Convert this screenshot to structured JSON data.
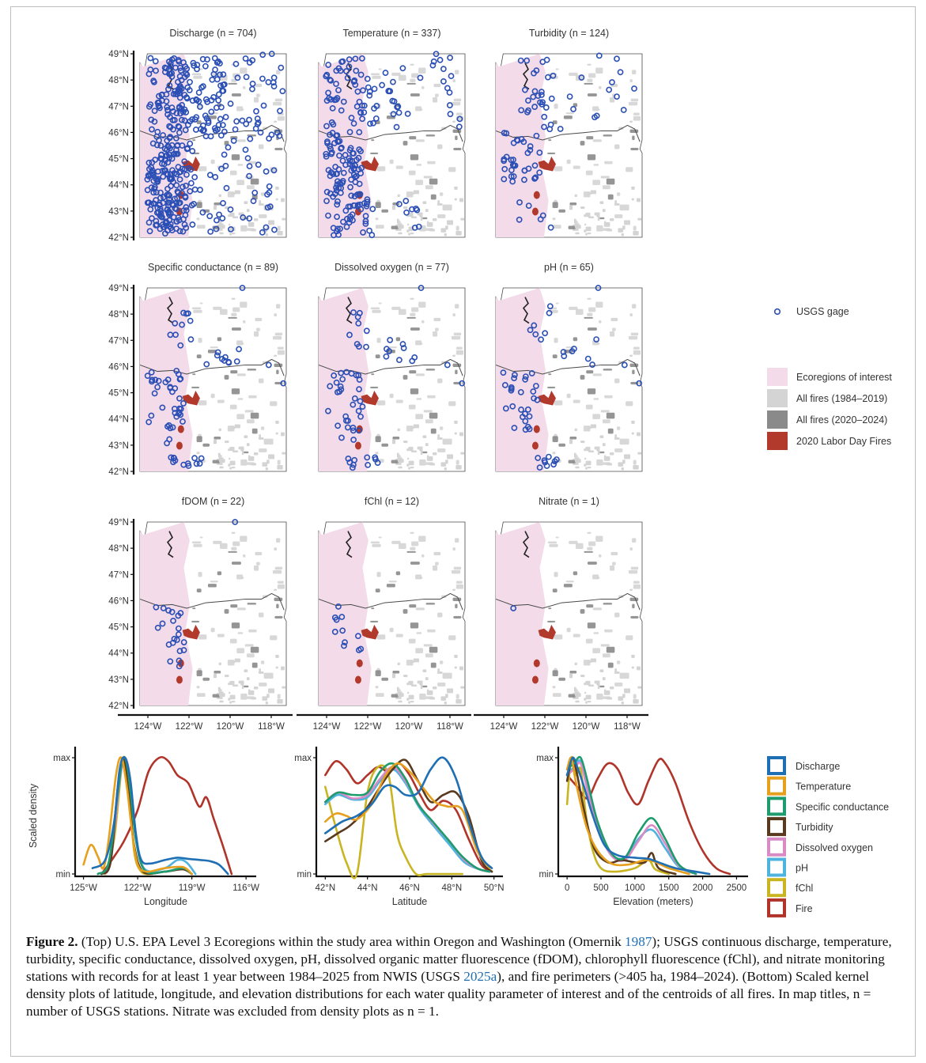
{
  "maps": {
    "panels": [
      {
        "title": "Discharge (n = 704)",
        "n": 704
      },
      {
        "title": "Temperature (n = 337)",
        "n": 337
      },
      {
        "title": "Turbidity (n = 124)",
        "n": 124
      },
      {
        "title": "Specific conductance (n = 89)",
        "n": 89
      },
      {
        "title": "Dissolved oxygen (n = 77)",
        "n": 77
      },
      {
        "title": "pH (n = 65)",
        "n": 65
      },
      {
        "title": "fDOM (n = 22)",
        "n": 22
      },
      {
        "title": "fChl (n = 12)",
        "n": 12
      },
      {
        "title": "Nitrate (n = 1)",
        "n": 1
      }
    ],
    "lat_ticks": [
      "49°N",
      "48°N",
      "47°N",
      "46°N",
      "45°N",
      "44°N",
      "43°N",
      "42°N"
    ],
    "lon_ticks": [
      "124°W",
      "122°W",
      "120°W",
      "118°W"
    ],
    "legend": {
      "gage": "USGS gage",
      "ecoregions": "Ecoregions of interest",
      "fires_early": "All fires (1984–2019)",
      "fires_late": "All fires (2020–2024)",
      "labor_day": "2020 Labor Day Fires"
    },
    "colors": {
      "gage": "#2b4fb5",
      "ecoregion": "#f3dbe9",
      "fire_early": "#d4d4d4",
      "fire_late": "#8a8a8a",
      "labor_day": "#b23a2c",
      "state_fill": "#ffffff"
    }
  },
  "chart_data": [
    {
      "type": "line",
      "xlabel": "Longitude",
      "ylabel": "Scaled density",
      "y_tick_labels": [
        "max",
        "min"
      ],
      "x_tick_labels": [
        "125°W",
        "122°W",
        "119°W",
        "116°W"
      ],
      "x_tick_values": [
        -125,
        -122,
        -119,
        -116
      ],
      "xlim": [
        -125.2,
        -115.7
      ],
      "ylim": [
        0,
        1
      ],
      "series": [
        {
          "name": "Discharge",
          "x": [
            -124.5,
            -123.8,
            -123.3,
            -123.0,
            -122.7,
            -122.4,
            -122.1,
            -121.8,
            -121.3,
            -120.5,
            -119.8,
            -119.2,
            -118.5,
            -118.0,
            -117.5,
            -117.0
          ],
          "y": [
            0.05,
            0.12,
            0.45,
            0.9,
            1.0,
            0.8,
            0.35,
            0.12,
            0.09,
            0.12,
            0.14,
            0.13,
            0.12,
            0.11,
            0.08,
            0.0
          ]
        },
        {
          "name": "Temperature",
          "x": [
            -125.0,
            -124.6,
            -124.2,
            -123.9,
            -123.6,
            -123.2,
            -122.9,
            -122.6,
            -122.3,
            -122.0,
            -121.5,
            -120.5,
            -119.5,
            -119.0
          ],
          "y": [
            0.08,
            0.25,
            0.15,
            0.05,
            0.3,
            0.85,
            1.0,
            0.75,
            0.35,
            0.08,
            0.02,
            0.05,
            0.06,
            0.0
          ]
        },
        {
          "name": "Specific conductance",
          "x": [
            -124.2,
            -123.6,
            -123.1,
            -122.8,
            -122.5,
            -122.1,
            -121.6,
            -120.5,
            -119.5,
            -119.0
          ],
          "y": [
            0.0,
            0.1,
            0.7,
            1.0,
            0.85,
            0.3,
            0.03,
            0.02,
            0.05,
            0.0
          ]
        },
        {
          "name": "Turbidity",
          "x": [
            -124.0,
            -123.5,
            -123.1,
            -122.8,
            -122.5,
            -122.2,
            -121.7,
            -120.5,
            -119.5,
            -119.0
          ],
          "y": [
            0.0,
            0.1,
            0.75,
            1.0,
            0.7,
            0.25,
            0.02,
            0.02,
            0.04,
            0.0
          ]
        },
        {
          "name": "Dissolved oxygen",
          "x": [
            -124.0,
            -123.5,
            -123.0,
            -122.7,
            -122.4,
            -122.1,
            -121.6,
            -120.5,
            -119.5,
            -119.0
          ],
          "y": [
            0.0,
            0.1,
            0.8,
            1.0,
            0.8,
            0.3,
            0.03,
            0.02,
            0.05,
            0.0
          ]
        },
        {
          "name": "pH",
          "x": [
            -124.0,
            -123.5,
            -123.0,
            -122.7,
            -122.4,
            -122.1,
            -121.6,
            -120.5,
            -119.8,
            -119.3,
            -118.8
          ],
          "y": [
            0.0,
            0.12,
            0.8,
            1.0,
            0.78,
            0.3,
            0.04,
            0.05,
            0.12,
            0.1,
            0.0
          ]
        },
        {
          "name": "fChl",
          "x": [
            -123.8,
            -123.3,
            -122.9,
            -122.7,
            -122.5,
            -122.2,
            -121.8,
            -121.2
          ],
          "y": [
            0.0,
            0.3,
            0.9,
            1.0,
            0.8,
            0.2,
            0.02,
            0.0
          ]
        },
        {
          "name": "Fire",
          "x": [
            -124.0,
            -123.3,
            -122.7,
            -122.0,
            -121.4,
            -120.8,
            -120.3,
            -119.8,
            -119.2,
            -118.6,
            -118.2,
            -117.8,
            -117.3,
            -116.8
          ],
          "y": [
            0.0,
            0.15,
            0.3,
            0.55,
            0.88,
            1.0,
            0.97,
            0.85,
            0.78,
            0.58,
            0.66,
            0.48,
            0.25,
            0.0
          ]
        }
      ]
    },
    {
      "type": "line",
      "xlabel": "Latitude",
      "y_tick_labels": [
        "max",
        "min"
      ],
      "x_tick_labels": [
        "42°N",
        "44°N",
        "46°N",
        "48°N",
        "50°N"
      ],
      "x_tick_values": [
        42,
        44,
        46,
        48,
        50
      ],
      "xlim": [
        41.8,
        50.2
      ],
      "ylim": [
        0,
        1
      ],
      "series": [
        {
          "name": "Discharge",
          "x": [
            42.0,
            42.8,
            43.5,
            44.2,
            44.8,
            45.3,
            45.8,
            46.4,
            47.0,
            47.6,
            48.2,
            48.8,
            49.4,
            49.9
          ],
          "y": [
            0.35,
            0.45,
            0.5,
            0.6,
            0.75,
            0.75,
            0.68,
            0.7,
            0.9,
            1.0,
            0.82,
            0.45,
            0.15,
            0.05
          ]
        },
        {
          "name": "Temperature",
          "x": [
            42.0,
            42.5,
            43.0,
            43.5,
            44.2,
            44.8,
            45.4,
            46.0,
            46.6,
            47.2,
            47.8,
            48.5,
            49.2,
            49.8
          ],
          "y": [
            0.45,
            0.52,
            0.5,
            0.47,
            0.6,
            0.83,
            0.95,
            0.88,
            0.75,
            0.62,
            0.58,
            0.55,
            0.2,
            0.05
          ]
        },
        {
          "name": "Specific conductance",
          "x": [
            42.0,
            42.6,
            43.3,
            44.0,
            44.6,
            45.2,
            45.8,
            46.4,
            47.1,
            47.8,
            48.5,
            49.2,
            49.8
          ],
          "y": [
            0.62,
            0.7,
            0.68,
            0.7,
            0.88,
            0.95,
            0.82,
            0.6,
            0.45,
            0.3,
            0.15,
            0.05,
            0.02
          ]
        },
        {
          "name": "Turbidity",
          "x": [
            42.0,
            42.6,
            43.2,
            43.9,
            44.6,
            45.2,
            45.8,
            46.4,
            47.0,
            47.6,
            48.2,
            48.8,
            49.4,
            49.9
          ],
          "y": [
            0.28,
            0.35,
            0.42,
            0.55,
            0.75,
            0.9,
            0.98,
            0.8,
            0.62,
            0.68,
            0.7,
            0.5,
            0.12,
            0.02
          ]
        },
        {
          "name": "Dissolved oxygen",
          "x": [
            42.0,
            42.6,
            43.3,
            44.0,
            44.6,
            45.2,
            45.8,
            46.5,
            47.2,
            47.9,
            48.6,
            49.3,
            49.8
          ],
          "y": [
            0.62,
            0.7,
            0.65,
            0.68,
            0.82,
            0.92,
            0.8,
            0.58,
            0.42,
            0.28,
            0.12,
            0.04,
            0.02
          ]
        },
        {
          "name": "pH",
          "x": [
            42.0,
            42.6,
            43.3,
            44.0,
            44.6,
            45.2,
            45.8,
            46.5,
            47.2,
            47.9,
            48.6,
            49.3,
            49.8
          ],
          "y": [
            0.6,
            0.68,
            0.64,
            0.66,
            0.8,
            0.9,
            0.78,
            0.56,
            0.4,
            0.25,
            0.1,
            0.04,
            0.02
          ]
        },
        {
          "name": "fChl",
          "x": [
            42.0,
            42.5,
            43.0,
            43.5,
            44.0,
            44.5,
            45.0,
            45.4,
            45.8,
            46.3,
            46.8,
            47.5,
            48.5
          ],
          "y": [
            0.75,
            0.4,
            0.1,
            0.0,
            0.7,
            0.92,
            0.85,
            0.35,
            0.15,
            0.0,
            0.0,
            0.0,
            0.0
          ]
        },
        {
          "name": "Fire",
          "x": [
            42.0,
            42.5,
            43.0,
            43.5,
            44.0,
            44.5,
            45.0,
            45.5,
            46.0,
            46.5,
            47.0,
            47.6,
            48.2,
            48.8,
            49.4,
            49.9
          ],
          "y": [
            0.85,
            0.97,
            0.9,
            0.78,
            0.85,
            0.92,
            0.88,
            0.95,
            0.85,
            0.68,
            0.55,
            0.63,
            0.55,
            0.3,
            0.08,
            0.02
          ]
        }
      ]
    },
    {
      "type": "line",
      "xlabel": "Elevation (meters)",
      "y_tick_labels": [
        "max",
        "min"
      ],
      "x_tick_labels": [
        "0",
        "500",
        "1000",
        "1500",
        "2000",
        "2500"
      ],
      "x_tick_values": [
        0,
        500,
        1000,
        1500,
        2000,
        2500
      ],
      "xlim": [
        -60,
        2600
      ],
      "ylim": [
        0,
        1
      ],
      "series": [
        {
          "name": "Discharge",
          "x": [
            0,
            80,
            150,
            250,
            380,
            550,
            750,
            1000,
            1200,
            1350,
            1600,
            1900,
            2100
          ],
          "y": [
            0.85,
            1.0,
            0.92,
            0.75,
            0.5,
            0.25,
            0.16,
            0.14,
            0.13,
            0.1,
            0.05,
            0.02,
            0.0
          ]
        },
        {
          "name": "Temperature",
          "x": [
            0,
            60,
            120,
            200,
            300,
            450,
            650,
            900,
            1200,
            1500,
            1800
          ],
          "y": [
            0.9,
            1.0,
            0.82,
            0.6,
            0.38,
            0.2,
            0.09,
            0.08,
            0.12,
            0.05,
            0.0
          ]
        },
        {
          "name": "Specific conductance",
          "x": [
            0,
            100,
            200,
            300,
            450,
            650,
            850,
            1050,
            1250,
            1450,
            1650,
            1900
          ],
          "y": [
            0.9,
            0.95,
            1.0,
            0.8,
            0.45,
            0.18,
            0.14,
            0.35,
            0.48,
            0.3,
            0.08,
            0.0
          ]
        },
        {
          "name": "Turbidity",
          "x": [
            0,
            80,
            150,
            250,
            400,
            600,
            800,
            1000,
            1150,
            1250,
            1350,
            1600
          ],
          "y": [
            0.8,
            1.0,
            0.85,
            0.55,
            0.22,
            0.1,
            0.12,
            0.1,
            0.1,
            0.18,
            0.05,
            0.0
          ]
        },
        {
          "name": "Dissolved oxygen",
          "x": [
            0,
            100,
            200,
            300,
            450,
            650,
            850,
            1050,
            1250,
            1450,
            1650,
            1900
          ],
          "y": [
            0.85,
            0.9,
            0.95,
            0.72,
            0.4,
            0.16,
            0.12,
            0.28,
            0.42,
            0.26,
            0.07,
            0.0
          ]
        },
        {
          "name": "pH",
          "x": [
            0,
            100,
            200,
            300,
            450,
            650,
            850,
            1050,
            1250,
            1450,
            1650,
            1900
          ],
          "y": [
            0.86,
            0.92,
            0.97,
            0.75,
            0.42,
            0.17,
            0.13,
            0.3,
            0.38,
            0.22,
            0.06,
            0.0
          ]
        },
        {
          "name": "fChl",
          "x": [
            0,
            60,
            130,
            200,
            280,
            380,
            500,
            700,
            1000,
            1200,
            1300,
            1500
          ],
          "y": [
            0.6,
            1.0,
            0.85,
            0.9,
            0.5,
            0.2,
            0.05,
            0.02,
            0.05,
            0.12,
            0.04,
            0.0
          ]
        },
        {
          "name": "Fire",
          "x": [
            0,
            150,
            300,
            450,
            600,
            750,
            900,
            1050,
            1200,
            1350,
            1450,
            1600,
            1800,
            2000,
            2200,
            2400
          ],
          "y": [
            0.85,
            0.75,
            0.65,
            0.82,
            0.95,
            0.9,
            0.7,
            0.6,
            0.8,
            0.98,
            0.95,
            0.78,
            0.45,
            0.2,
            0.05,
            0.0
          ]
        }
      ]
    }
  ],
  "density_legend": {
    "items": [
      "Discharge",
      "Temperature",
      "Specific conductance",
      "Turbidity",
      "Dissolved oxygen",
      "pH",
      "fChl",
      "Fire"
    ],
    "colors": {
      "Discharge": "#1f6fb5",
      "Temperature": "#e6a01e",
      "Specific conductance": "#1f9c6e",
      "Turbidity": "#5a3a1e",
      "Dissolved oxygen": "#d98bc6",
      "pH": "#4fb3e0",
      "fChl": "#c9b421",
      "Fire": "#b0342a"
    }
  },
  "caption": {
    "label": "Figure 2.",
    "part1": " (Top) U.S. EPA Level 3 Ecoregions within the study area within Oregon and Washington (Omernik ",
    "cite1": "1987",
    "part2": "); USGS continuous discharge, temperature, turbidity, specific conductance, dissolved oxygen, pH, dissolved organic matter fluorescence (fDOM), chlorophyll fluorescence (fChl), and nitrate monitoring stations with records for at least 1 year between 1984–2025 from NWIS (USGS ",
    "cite2": "2025a",
    "part3": "), and fire perimeters (>405 ha, 1984–2024). (Bottom) Scaled kernel density plots of latitude, longitude, and elevation distributions for each water quality parameter of interest and of the centroids of all fires. In map titles, n = number of USGS stations. Nitrate was excluded from density plots as n = 1."
  }
}
